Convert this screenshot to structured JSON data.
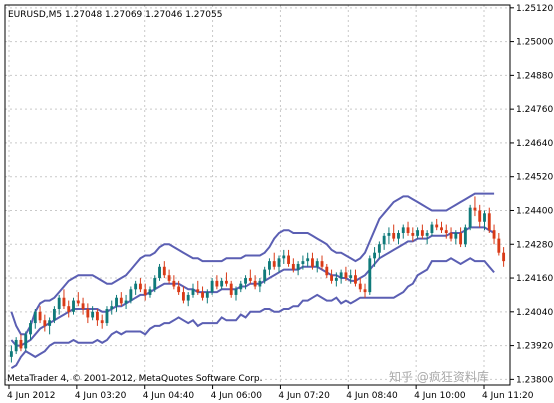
{
  "chart_data": {
    "type": "candlestick",
    "symbol_line": "EURUSD,M5  1.27048 1.27069 1.27046 1.27055",
    "footer": "MetaTrader 4, © 2001-2012, MetaQuotes Software Corp.",
    "watermark": "知乎 @疯狂资料库",
    "y_ticks": [
      "1.25120",
      "1.25000",
      "1.24880",
      "1.24760",
      "1.24640",
      "1.24520",
      "1.24400",
      "1.24280",
      "1.24160",
      "1.24040",
      "1.23920",
      "1.23800"
    ],
    "ylim": [
      1.2378,
      1.2513
    ],
    "x_ticks": [
      "4 Jun 2012",
      "4 Jun 03:20",
      "4 Jun 04:40",
      "4 Jun 06:00",
      "4 Jun 07:20",
      "4 Jun 08:40",
      "4 Jun 10:00",
      "4 Jun 11:20"
    ],
    "grid": true,
    "colors": {
      "bull": "#0f7a7a",
      "bear": "#d93a17",
      "band": "#5b5fb3",
      "grid": "#c9c9c9"
    },
    "candles": [
      [
        1.2388,
        1.2392,
        1.2386,
        1.239
      ],
      [
        1.239,
        1.2395,
        1.2389,
        1.2394
      ],
      [
        1.2394,
        1.2396,
        1.239,
        1.2391
      ],
      [
        1.2391,
        1.2397,
        1.239,
        1.2396
      ],
      [
        1.2396,
        1.2401,
        1.2394,
        1.24
      ],
      [
        1.24,
        1.2405,
        1.2398,
        1.2404
      ],
      [
        1.2404,
        1.2406,
        1.24,
        1.2401
      ],
      [
        1.2401,
        1.2403,
        1.2397,
        1.2399
      ],
      [
        1.2399,
        1.2402,
        1.2396,
        1.2401
      ],
      [
        1.2401,
        1.2406,
        1.24,
        1.2405
      ],
      [
        1.2405,
        1.241,
        1.2403,
        1.2409
      ],
      [
        1.2409,
        1.2412,
        1.2405,
        1.2406
      ],
      [
        1.2406,
        1.2408,
        1.2402,
        1.2404
      ],
      [
        1.2404,
        1.2409,
        1.2403,
        1.2408
      ],
      [
        1.2408,
        1.2411,
        1.2406,
        1.2407
      ],
      [
        1.2407,
        1.2409,
        1.2403,
        1.2405
      ],
      [
        1.2405,
        1.2407,
        1.24,
        1.2402
      ],
      [
        1.2402,
        1.2406,
        1.2401,
        1.2404
      ],
      [
        1.2404,
        1.2405,
        1.2399,
        1.2401
      ],
      [
        1.2401,
        1.2403,
        1.2398,
        1.24
      ],
      [
        1.24,
        1.2406,
        1.2399,
        1.2405
      ],
      [
        1.2405,
        1.2408,
        1.2403,
        1.2406
      ],
      [
        1.2406,
        1.241,
        1.2404,
        1.2409
      ],
      [
        1.2409,
        1.2411,
        1.2406,
        1.2407
      ],
      [
        1.2407,
        1.241,
        1.2405,
        1.2408
      ],
      [
        1.2408,
        1.2413,
        1.2407,
        1.2412
      ],
      [
        1.2412,
        1.2415,
        1.241,
        1.2414
      ],
      [
        1.2414,
        1.2416,
        1.2411,
        1.2412
      ],
      [
        1.2412,
        1.2414,
        1.2408,
        1.241
      ],
      [
        1.241,
        1.2413,
        1.2409,
        1.2412
      ],
      [
        1.2412,
        1.2417,
        1.2411,
        1.2416
      ],
      [
        1.2416,
        1.2421,
        1.2415,
        1.242
      ],
      [
        1.242,
        1.2422,
        1.2416,
        1.2417
      ],
      [
        1.2417,
        1.2419,
        1.2414,
        1.2415
      ],
      [
        1.2415,
        1.2417,
        1.2412,
        1.2413
      ],
      [
        1.2413,
        1.2415,
        1.241,
        1.2411
      ],
      [
        1.2411,
        1.2413,
        1.2407,
        1.2408
      ],
      [
        1.2408,
        1.2411,
        1.2406,
        1.241
      ],
      [
        1.241,
        1.2414,
        1.2409,
        1.2412
      ],
      [
        1.2412,
        1.2415,
        1.241,
        1.2411
      ],
      [
        1.2411,
        1.2413,
        1.2408,
        1.2409
      ],
      [
        1.2409,
        1.2412,
        1.2407,
        1.2411
      ],
      [
        1.2411,
        1.2416,
        1.241,
        1.2415
      ],
      [
        1.2415,
        1.2417,
        1.2412,
        1.2413
      ],
      [
        1.2413,
        1.2416,
        1.2412,
        1.2415
      ],
      [
        1.2415,
        1.2418,
        1.2413,
        1.2414
      ],
      [
        1.2414,
        1.2415,
        1.2409,
        1.241
      ],
      [
        1.241,
        1.2413,
        1.2408,
        1.2412
      ],
      [
        1.2412,
        1.2415,
        1.2411,
        1.2414
      ],
      [
        1.2414,
        1.2417,
        1.2412,
        1.2416
      ],
      [
        1.2416,
        1.2419,
        1.2414,
        1.2415
      ],
      [
        1.2415,
        1.2417,
        1.2412,
        1.2413
      ],
      [
        1.2413,
        1.2416,
        1.2411,
        1.2415
      ],
      [
        1.2415,
        1.242,
        1.2414,
        1.2419
      ],
      [
        1.2419,
        1.2423,
        1.2417,
        1.2422
      ],
      [
        1.2422,
        1.2425,
        1.2419,
        1.242
      ],
      [
        1.242,
        1.2424,
        1.2418,
        1.2423
      ],
      [
        1.2423,
        1.2426,
        1.2421,
        1.2424
      ],
      [
        1.2424,
        1.2426,
        1.242,
        1.2421
      ],
      [
        1.2421,
        1.2423,
        1.2418,
        1.2419
      ],
      [
        1.2419,
        1.2422,
        1.2417,
        1.2421
      ],
      [
        1.2421,
        1.2424,
        1.2419,
        1.2422
      ],
      [
        1.2422,
        1.2425,
        1.242,
        1.2423
      ],
      [
        1.2423,
        1.2425,
        1.2419,
        1.242
      ],
      [
        1.242,
        1.2423,
        1.2418,
        1.2422
      ],
      [
        1.2422,
        1.2424,
        1.2419,
        1.242
      ],
      [
        1.242,
        1.2421,
        1.2416,
        1.2417
      ],
      [
        1.2417,
        1.2419,
        1.2414,
        1.2415
      ],
      [
        1.2415,
        1.2418,
        1.2413,
        1.2416
      ],
      [
        1.2416,
        1.2419,
        1.2414,
        1.2418
      ],
      [
        1.2418,
        1.242,
        1.2415,
        1.2416
      ],
      [
        1.2416,
        1.2419,
        1.2414,
        1.2417
      ],
      [
        1.2417,
        1.2419,
        1.2413,
        1.2414
      ],
      [
        1.2414,
        1.2416,
        1.2411,
        1.2412
      ],
      [
        1.2412,
        1.2414,
        1.2409,
        1.2411
      ],
      [
        1.2411,
        1.2424,
        1.241,
        1.2423
      ],
      [
        1.2423,
        1.2427,
        1.242,
        1.2425
      ],
      [
        1.2425,
        1.2429,
        1.2423,
        1.2428
      ],
      [
        1.2428,
        1.2432,
        1.2426,
        1.2431
      ],
      [
        1.2431,
        1.2434,
        1.2428,
        1.2432
      ],
      [
        1.2432,
        1.2435,
        1.2429,
        1.243
      ],
      [
        1.243,
        1.2433,
        1.2428,
        1.2432
      ],
      [
        1.2432,
        1.2435,
        1.243,
        1.2434
      ],
      [
        1.2434,
        1.2436,
        1.2431,
        1.2432
      ],
      [
        1.2432,
        1.2434,
        1.2429,
        1.2431
      ],
      [
        1.2431,
        1.2434,
        1.243,
        1.2433
      ],
      [
        1.2433,
        1.2435,
        1.243,
        1.2431
      ],
      [
        1.2431,
        1.2433,
        1.2428,
        1.2432
      ],
      [
        1.2432,
        1.2436,
        1.2431,
        1.2435
      ],
      [
        1.2435,
        1.2437,
        1.2433,
        1.2434
      ],
      [
        1.2434,
        1.2436,
        1.2432,
        1.2433
      ],
      [
        1.2433,
        1.2435,
        1.243,
        1.2432
      ],
      [
        1.2432,
        1.2434,
        1.2429,
        1.243
      ],
      [
        1.243,
        1.2433,
        1.2428,
        1.2432
      ],
      [
        1.2432,
        1.2434,
        1.2427,
        1.2428
      ],
      [
        1.2428,
        1.2435,
        1.2427,
        1.2434
      ],
      [
        1.2434,
        1.2442,
        1.2433,
        1.2441
      ],
      [
        1.2441,
        1.2445,
        1.2438,
        1.244
      ],
      [
        1.244,
        1.2442,
        1.2434,
        1.2436
      ],
      [
        1.2436,
        1.244,
        1.2433,
        1.2439
      ],
      [
        1.2439,
        1.2441,
        1.2432,
        1.2433
      ],
      [
        1.2433,
        1.2435,
        1.2428,
        1.243
      ],
      [
        1.243,
        1.2432,
        1.2424,
        1.2425
      ],
      [
        1.2425,
        1.2427,
        1.242,
        1.2422
      ]
    ],
    "upper_band": [
      1.2404,
      1.2399,
      1.2396,
      1.2396,
      1.2399,
      1.2404,
      1.2407,
      1.2408,
      1.2408,
      1.2409,
      1.2411,
      1.2413,
      1.2415,
      1.2416,
      1.2417,
      1.2417,
      1.2417,
      1.2417,
      1.2416,
      1.2415,
      1.2414,
      1.2414,
      1.2415,
      1.2416,
      1.2417,
      1.2419,
      1.2421,
      1.2423,
      1.2424,
      1.2424,
      1.2425,
      1.2427,
      1.2428,
      1.2428,
      1.2427,
      1.2426,
      1.2425,
      1.2424,
      1.2423,
      1.2423,
      1.2422,
      1.2422,
      1.2422,
      1.2422,
      1.2422,
      1.2423,
      1.2423,
      1.2423,
      1.2423,
      1.2424,
      1.2424,
      1.2424,
      1.2424,
      1.2425,
      1.2427,
      1.243,
      1.2432,
      1.2433,
      1.2433,
      1.2432,
      1.2432,
      1.2432,
      1.2432,
      1.2431,
      1.243,
      1.2429,
      1.2428,
      1.2426,
      1.2425,
      1.2425,
      1.2424,
      1.2423,
      1.2422,
      1.2423,
      1.2425,
      1.2429,
      1.2433,
      1.2437,
      1.2439,
      1.2441,
      1.2443,
      1.2444,
      1.2445,
      1.2445,
      1.2444,
      1.2443,
      1.2442,
      1.2441,
      1.244,
      1.244,
      1.244,
      1.244,
      1.2441,
      1.2442,
      1.2443,
      1.2444,
      1.2445,
      1.2446,
      1.2446,
      1.2446,
      1.2446,
      1.2446
    ],
    "middle_band": [
      1.2394,
      1.2392,
      1.2392,
      1.2393,
      1.2394,
      1.2396,
      1.2398,
      1.2399,
      1.24,
      1.2401,
      1.2402,
      1.2403,
      1.2404,
      1.2405,
      1.2405,
      1.2405,
      1.2405,
      1.2405,
      1.2405,
      1.2404,
      1.2404,
      1.2405,
      1.2406,
      1.2406,
      1.2407,
      1.2408,
      1.2409,
      1.241,
      1.241,
      1.2411,
      1.2412,
      1.2413,
      1.2414,
      1.2414,
      1.2414,
      1.2414,
      1.2413,
      1.2412,
      1.2412,
      1.2411,
      1.2411,
      1.2411,
      1.2411,
      1.2411,
      1.2412,
      1.2412,
      1.2412,
      1.2412,
      1.2413,
      1.2413,
      1.2414,
      1.2414,
      1.2414,
      1.2415,
      1.2416,
      1.2417,
      1.2418,
      1.2419,
      1.2419,
      1.2419,
      1.2419,
      1.242,
      1.242,
      1.242,
      1.242,
      1.2419,
      1.2418,
      1.2417,
      1.2417,
      1.2416,
      1.2416,
      1.2415,
      1.2415,
      1.2416,
      1.2417,
      1.2419,
      1.2421,
      1.2423,
      1.2424,
      1.2425,
      1.2426,
      1.2427,
      1.2428,
      1.2429,
      1.2429,
      1.243,
      1.243,
      1.243,
      1.2431,
      1.2431,
      1.2431,
      1.2431,
      1.2432,
      1.2432,
      1.2432,
      1.2433,
      1.2434,
      1.2434,
      1.2434,
      1.2434,
      1.2433,
      1.2432
    ],
    "lower_band": [
      1.2384,
      1.2385,
      1.2388,
      1.239,
      1.2389,
      1.2388,
      1.2389,
      1.239,
      1.2392,
      1.2393,
      1.2393,
      1.2393,
      1.2393,
      1.2394,
      1.2393,
      1.2393,
      1.2393,
      1.2393,
      1.2394,
      1.2393,
      1.2394,
      1.2396,
      1.2397,
      1.2396,
      1.2397,
      1.2397,
      1.2397,
      1.2397,
      1.2396,
      1.2398,
      1.2399,
      1.2399,
      1.24,
      1.24,
      1.2401,
      1.2402,
      1.2401,
      1.24,
      1.2401,
      1.2399,
      1.24,
      1.24,
      1.24,
      1.24,
      1.2402,
      1.2401,
      1.2401,
      1.2401,
      1.2403,
      1.2402,
      1.2404,
      1.2404,
      1.2404,
      1.2405,
      1.2405,
      1.2404,
      1.2404,
      1.2405,
      1.2405,
      1.2406,
      1.2406,
      1.2408,
      1.2408,
      1.2409,
      1.241,
      1.2409,
      1.2408,
      1.2408,
      1.2409,
      1.2407,
      1.2408,
      1.2407,
      1.2408,
      1.2409,
      1.2409,
      1.2409,
      1.2409,
      1.2409,
      1.2409,
      1.2409,
      1.2409,
      1.241,
      1.2411,
      1.2413,
      1.2414,
      1.2417,
      1.2418,
      1.2419,
      1.2422,
      1.2422,
      1.2422,
      1.2422,
      1.2423,
      1.2422,
      1.2421,
      1.2422,
      1.2423,
      1.2422,
      1.2422,
      1.2422,
      1.242,
      1.2418
    ]
  }
}
